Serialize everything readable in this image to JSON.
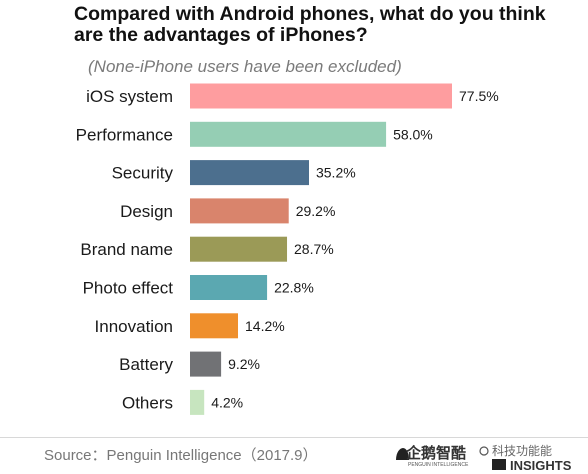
{
  "chart_data": {
    "type": "bar",
    "orientation": "horizontal",
    "title": "Compared with Android phones, what do you think are the advantages of iPhones?",
    "subtitle": "(None-iPhone users have been excluded)",
    "categories": [
      "iOS system",
      "Performance",
      "Security",
      "Design",
      "Brand name",
      "Photo effect",
      "Innovation",
      "Battery",
      "Others"
    ],
    "values": [
      77.5,
      58.0,
      35.2,
      29.2,
      28.7,
      22.8,
      14.2,
      9.2,
      4.2
    ],
    "value_labels": [
      "77.5%",
      "58.0%",
      "35.2%",
      "29.2%",
      "28.7%",
      "22.8%",
      "14.2%",
      "9.2%",
      "4.2%"
    ],
    "colors": [
      "#fe9d9f",
      "#95ceb4",
      "#4c6f8e",
      "#d9846c",
      "#9b9a57",
      "#5ba8b1",
      "#ef8f2c",
      "#717275",
      "#c7e5bf"
    ],
    "xlim": [
      0,
      100
    ],
    "grid": false,
    "legend": "none"
  },
  "footer": {
    "source": "Source：Penguin Intelligence（2017.9）",
    "logo_cn": "企鹅智酷",
    "logo_sub": "PENGUIN INTELLIGENCE",
    "insights_logo": "INSIGHTS",
    "watermark": "科技功能能"
  }
}
